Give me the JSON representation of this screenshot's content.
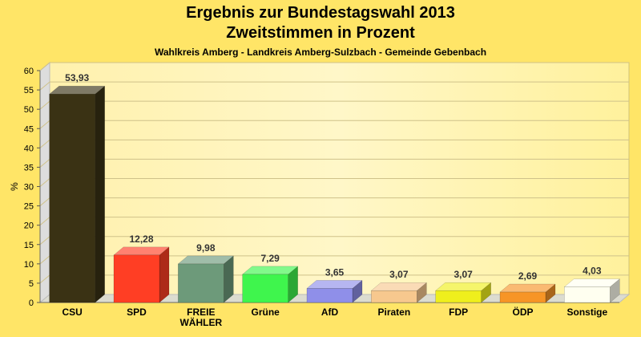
{
  "chart_data": {
    "type": "bar",
    "title": "Ergebnis zur Bundestagswahl 2013",
    "title2": "Zweitstimmen in Prozent",
    "subtitle": "Wahlkreis Amberg - Landkreis Amberg-Sulzbach - Gemeinde Gebenbach",
    "ylabel": "%",
    "ylim": [
      0,
      60
    ],
    "yticks": [
      "0",
      "5",
      "10",
      "15",
      "20",
      "25",
      "30",
      "35",
      "40",
      "45",
      "50",
      "55",
      "60"
    ],
    "categories": [
      "CSU",
      "SPD",
      "FREIE WÄHLER",
      "Grüne",
      "AfD",
      "Piraten",
      "FDP",
      "ÖDP",
      "Sonstige"
    ],
    "category_lines": [
      [
        "CSU"
      ],
      [
        "SPD"
      ],
      [
        "FREIE",
        "WÄHLER"
      ],
      [
        "Grüne"
      ],
      [
        "AfD"
      ],
      [
        "Piraten"
      ],
      [
        "FDP"
      ],
      [
        "ÖDP"
      ],
      [
        "Sonstige"
      ]
    ],
    "values": [
      53.93,
      12.28,
      9.98,
      7.29,
      3.65,
      3.07,
      3.07,
      2.69,
      4.03
    ],
    "data_labels": [
      "53,93",
      "12,28",
      "9,98",
      "7,29",
      "3,65",
      "3,07",
      "3,07",
      "2,69",
      "4,03"
    ],
    "colors": [
      "#3a3214",
      "#ff3e24",
      "#6d9a7a",
      "#3ff54d",
      "#8f8fe9",
      "#f7c88e",
      "#efef1c",
      "#f79526",
      "#fffff0"
    ],
    "grid": true,
    "legend": "none"
  }
}
